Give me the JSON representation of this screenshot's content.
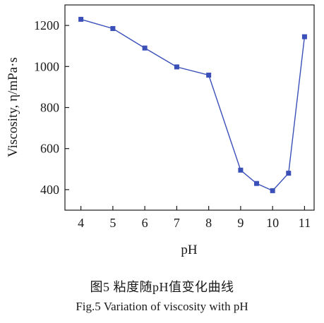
{
  "chart_data": {
    "type": "line",
    "xlabel": "pH",
    "ylabel": "Viscosity, η/mPa·s",
    "xlim": [
      3.5,
      11.3
    ],
    "ylim": [
      300,
      1300
    ],
    "x_ticks": [
      4,
      5,
      6,
      7,
      8,
      9,
      10,
      11
    ],
    "y_ticks": [
      400,
      600,
      800,
      1000,
      1200
    ],
    "grid": false,
    "series": [
      {
        "color": "#3a4fb8",
        "marker": "square",
        "x": [
          4,
          5,
          6,
          7,
          8,
          9,
          9.5,
          10,
          10.5,
          11
        ],
        "y": [
          1230,
          1185,
          1090,
          998,
          958,
          495,
          430,
          395,
          480,
          1145
        ]
      }
    ]
  },
  "caption": {
    "chinese": "图5 粘度随pH值变化曲线",
    "english": "Fig.5  Variation of viscosity with pH"
  }
}
